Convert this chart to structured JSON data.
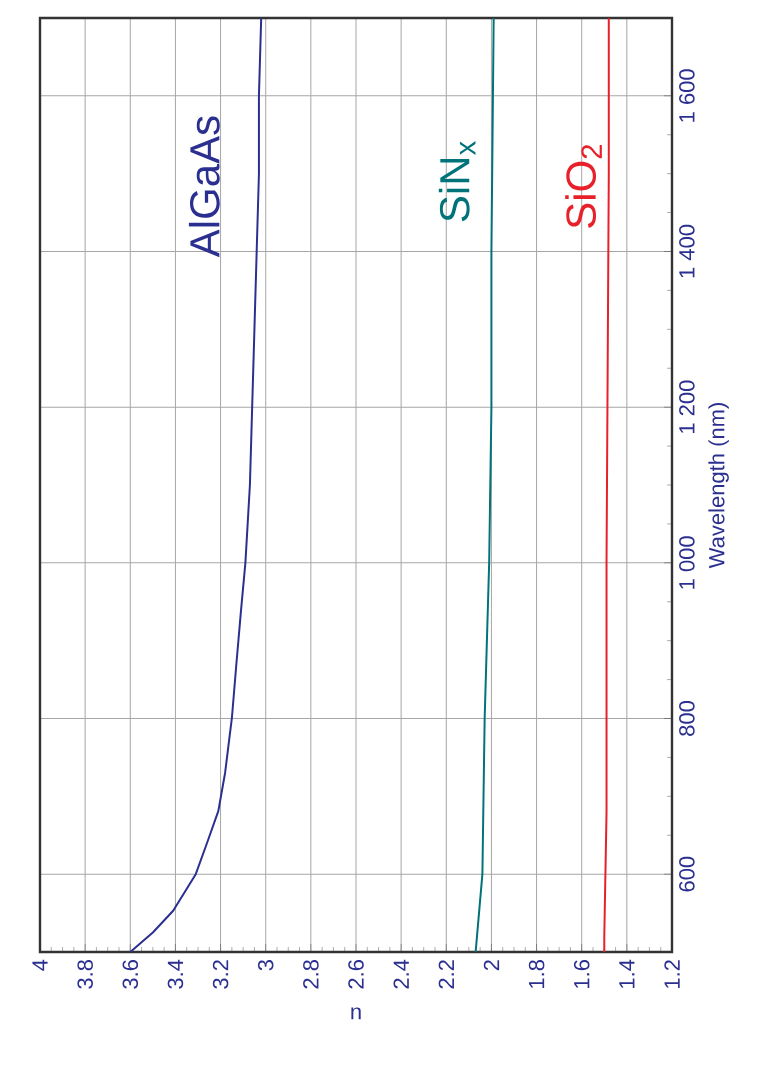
{
  "chart_data": {
    "type": "line",
    "xlabel": "n",
    "ylabel": "Wavelength (nm)",
    "xlim": [
      4,
      1.2
    ],
    "ylim": [
      500,
      1700
    ],
    "xticks": [
      4,
      3.8,
      3.6,
      3.4,
      3.2,
      3,
      2.8,
      2.6,
      2.4,
      2.2,
      2,
      1.8,
      1.6,
      1.4,
      1.2
    ],
    "yticks": [
      600,
      800,
      {
        "value": 1000,
        "label": "1 000"
      },
      {
        "value": 1200,
        "label": "1 200"
      },
      {
        "value": 1400,
        "label": "1 400"
      },
      {
        "value": 1600,
        "label": "1 600"
      }
    ],
    "grid": true,
    "marker": "none",
    "line_style": "solid",
    "series": [
      {
        "name": "AlGaAs",
        "color": "#2b2f90",
        "values": [
          500,
          525,
          553,
          600,
          640,
          681,
          730,
          777,
          800,
          870,
          937,
          1000,
          1100,
          1200,
          1300,
          1400,
          1500,
          1600,
          1700
        ],
        "x": [
          3.6,
          3.5,
          3.41,
          3.31,
          3.26,
          3.21,
          3.18,
          3.16,
          3.15,
          3.13,
          3.11,
          3.09,
          3.07,
          3.06,
          3.05,
          3.04,
          3.03,
          3.03,
          3.02
        ]
      },
      {
        "name": "SiN$_{x}$",
        "color": "#00737a",
        "values": [
          500,
          600,
          800,
          1000,
          1200,
          1400,
          1700
        ],
        "x": [
          2.07,
          2.04,
          2.03,
          2.01,
          2.0,
          2.0,
          1.99
        ]
      },
      {
        "name": "SiO$_{2}$",
        "color": "#e8202a",
        "values": [
          500,
          520,
          680,
          1000,
          1500,
          1700
        ],
        "x": [
          1.5,
          1.5,
          1.49,
          1.49,
          1.48,
          1.48
        ]
      }
    ]
  }
}
